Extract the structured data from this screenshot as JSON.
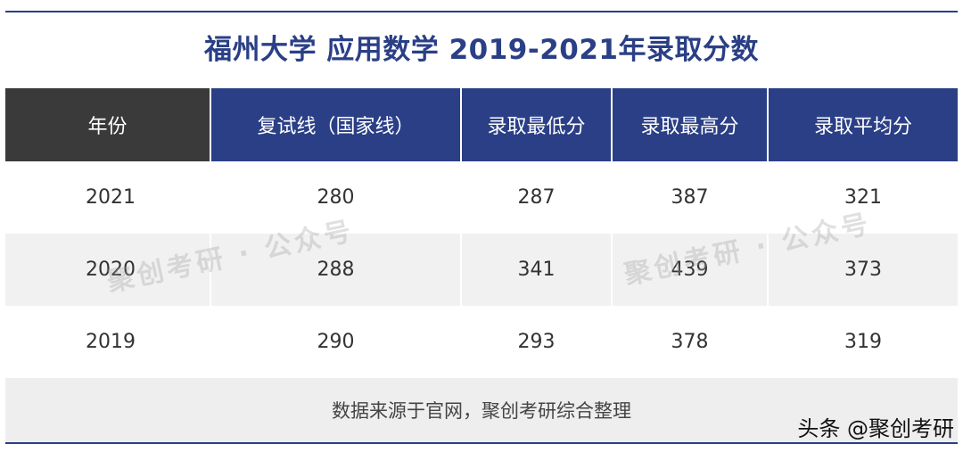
{
  "title": "福州大学 应用数学 2019-2021年录取分数",
  "table": {
    "headers": [
      "年份",
      "复试线（国家线）",
      "录取最低分",
      "录取最高分",
      "录取平均分"
    ],
    "rows": [
      [
        "2021",
        "280",
        "287",
        "387",
        "321"
      ],
      [
        "2020",
        "288",
        "341",
        "439",
        "373"
      ],
      [
        "2019",
        "290",
        "293",
        "378",
        "319"
      ]
    ],
    "note": "数据来源于官网，聚创考研综合整理"
  },
  "watermark": {
    "left": "聚创考研 · 公众号",
    "right": "聚创考研 · 公众号"
  },
  "source_tag": "头条 @聚创考研",
  "colors": {
    "accent_blue": "#2a3f86",
    "header_dark": "#3a3a3a",
    "stripe": "#f1f1f1"
  }
}
